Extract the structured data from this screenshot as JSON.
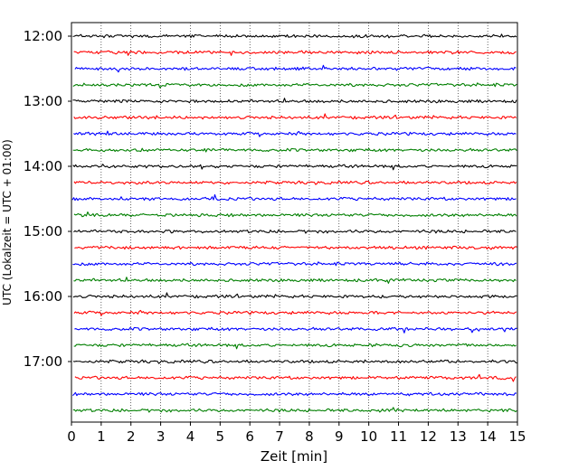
{
  "chart_data": {
    "type": "line",
    "title": "",
    "xlabel": "Zeit  [min]",
    "ylabel": "UTC (Lokalzeit = UTC + 01:00)",
    "xlim": [
      0,
      15
    ],
    "x_ticks": [
      "0",
      "1",
      "2",
      "3",
      "4",
      "5",
      "6",
      "7",
      "8",
      "9",
      "10",
      "11",
      "12",
      "13",
      "14",
      "15"
    ],
    "y_tick_labels": [
      "12:00",
      "13:00",
      "14:00",
      "15:00",
      "16:00",
      "17:00"
    ],
    "grid": "vertical dotted lines at each minute",
    "trace_interval_minutes": 15,
    "trace_color_cycle": [
      "#000000",
      "#ff0000",
      "#0000ff",
      "#007f00"
    ],
    "series": [
      {
        "start": "12:00"
      },
      {
        "start": "12:15"
      },
      {
        "start": "12:30"
      },
      {
        "start": "12:45"
      },
      {
        "start": "13:00"
      },
      {
        "start": "13:15"
      },
      {
        "start": "13:30"
      },
      {
        "start": "13:45"
      },
      {
        "start": "14:00"
      },
      {
        "start": "14:15"
      },
      {
        "start": "14:30"
      },
      {
        "start": "14:45"
      },
      {
        "start": "15:00"
      },
      {
        "start": "15:15"
      },
      {
        "start": "15:30"
      },
      {
        "start": "15:45"
      },
      {
        "start": "16:00"
      },
      {
        "start": "16:15"
      },
      {
        "start": "16:30"
      },
      {
        "start": "16:45"
      },
      {
        "start": "17:00"
      },
      {
        "start": "17:15"
      },
      {
        "start": "17:30"
      },
      {
        "start": "17:45"
      }
    ]
  }
}
